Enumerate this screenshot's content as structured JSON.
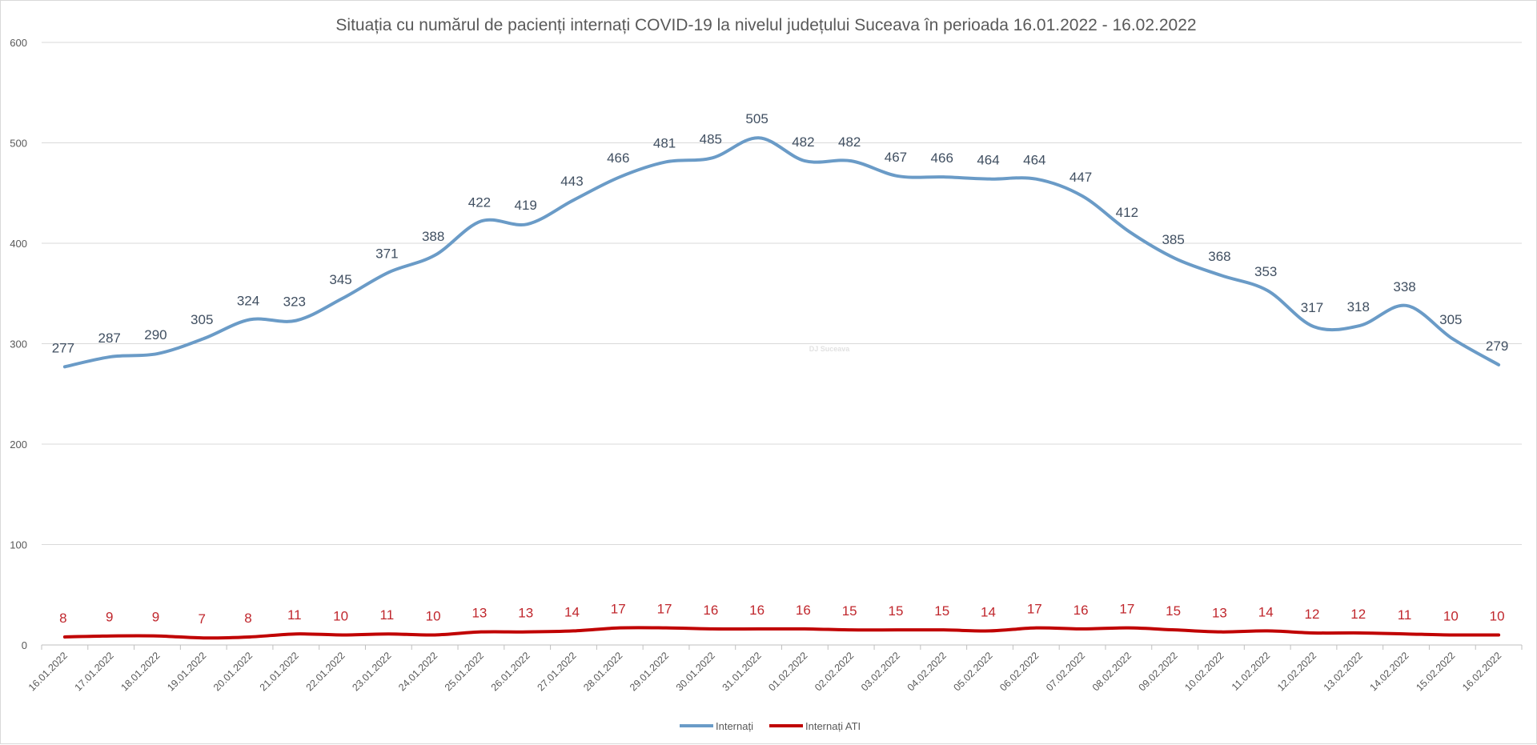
{
  "chart_data": {
    "type": "line",
    "title": "Situația cu numărul de pacienți internați COVID-19 la nivelul județului Suceava în perioada 16.01.2022 - 16.02.2022",
    "xlabel": "",
    "ylabel": "",
    "ylim": [
      0,
      600
    ],
    "yticks": [
      0,
      100,
      200,
      300,
      400,
      500,
      600
    ],
    "grid": true,
    "smooth": true,
    "legend_position": "bottom",
    "categories": [
      "16.01.2022",
      "17.01.2022",
      "18.01.2022",
      "19.01.2022",
      "20.01.2022",
      "21.01.2022",
      "22.01.2022",
      "23.01.2022",
      "24.01.2022",
      "25.01.2022",
      "26.01.2022",
      "27.01.2022",
      "28.01.2022",
      "29.01.2022",
      "30.01.2022",
      "31.01.2022",
      "01.02.2022",
      "02.02.2022",
      "03.02.2022",
      "04.02.2022",
      "05.02.2022",
      "06.02.2022",
      "07.02.2022",
      "08.02.2022",
      "09.02.2022",
      "10.02.2022",
      "11.02.2022",
      "12.02.2022",
      "13.02.2022",
      "14.02.2022",
      "15.02.2022",
      "16.02.2022"
    ],
    "series": [
      {
        "name": "Internați",
        "color": "#6a9bc7",
        "label_color": "#404f61",
        "values": [
          277,
          287,
          290,
          305,
          324,
          323,
          345,
          371,
          388,
          422,
          419,
          443,
          466,
          481,
          485,
          505,
          482,
          482,
          467,
          466,
          464,
          464,
          447,
          412,
          385,
          368,
          353,
          317,
          318,
          338,
          305,
          279
        ]
      },
      {
        "name": "Internați ATI",
        "color": "#c00000",
        "label_color": "#c0272d",
        "values": [
          8,
          9,
          9,
          7,
          8,
          11,
          10,
          11,
          10,
          13,
          13,
          14,
          17,
          17,
          16,
          16,
          16,
          15,
          15,
          15,
          14,
          17,
          16,
          17,
          15,
          13,
          14,
          12,
          12,
          11,
          10,
          10
        ]
      }
    ],
    "watermark": "DJ Suceava"
  }
}
